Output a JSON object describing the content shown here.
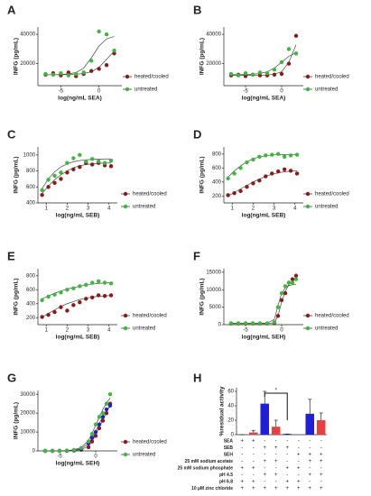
{
  "chart_data": [
    {
      "label": "A",
      "type": "scatter",
      "xlabel": "log(ng/mL SEA)",
      "ylabel": "INFG (pg/mL)",
      "xlim": [
        -8,
        3
      ],
      "xticks": [
        -5,
        0
      ],
      "ylim": [
        5000,
        45000
      ],
      "yticks": [
        20000,
        40000
      ],
      "x": [
        -7,
        -6,
        -5,
        -4,
        -3,
        -2,
        -1,
        0,
        1,
        2
      ],
      "series": [
        {
          "name": "heated/cooled",
          "color": "#8b1a1a",
          "values": [
            12500,
            13500,
            12000,
            14000,
            11500,
            13000,
            15000,
            16500,
            19000,
            27000
          ],
          "fit": [
            12500,
            12500,
            12500,
            12600,
            12800,
            13300,
            14500,
            17500,
            23000,
            28500
          ]
        },
        {
          "name": "untreated",
          "color": "#3cb83c",
          "values": [
            13000,
            12500,
            13500,
            12000,
            13000,
            14000,
            22000,
            42000,
            40000,
            29000
          ],
          "fit": [
            12500,
            12500,
            12600,
            13000,
            14000,
            17000,
            24000,
            32000,
            37000,
            38500
          ]
        }
      ]
    },
    {
      "label": "B",
      "type": "scatter",
      "xlabel": "log(ng/mL SEA)",
      "ylabel": "INFG (pg/mL)",
      "xlim": [
        -8,
        3
      ],
      "xticks": [
        -5,
        0
      ],
      "ylim": [
        5000,
        45000
      ],
      "yticks": [
        20000,
        40000
      ],
      "x": [
        -7,
        -6,
        -5,
        -4,
        -3,
        -2,
        -1,
        0,
        1,
        2
      ],
      "series": [
        {
          "name": "heated/cooled",
          "color": "#8b1a1a",
          "values": [
            12000,
            12500,
            11500,
            12500,
            12000,
            12000,
            12500,
            13000,
            20000,
            39000
          ],
          "fit": [
            12000,
            12000,
            12000,
            12000,
            12100,
            12300,
            12800,
            14500,
            21000,
            33000
          ]
        },
        {
          "name": "untreated",
          "color": "#3cb83c",
          "values": [
            13000,
            12000,
            13500,
            12500,
            14000,
            13500,
            16000,
            21000,
            30000,
            27000
          ],
          "fit": [
            12500,
            12500,
            12600,
            12800,
            13300,
            14500,
            17000,
            21000,
            25000,
            27500
          ]
        }
      ]
    },
    {
      "label": "C",
      "type": "scatter",
      "xlabel": "log(ng/mL SEB)",
      "ylabel": "INFG (pg/mL)",
      "xlim": [
        0.6,
        4.4
      ],
      "xticks": [
        1,
        2,
        3,
        4
      ],
      "ylim": [
        400,
        1100
      ],
      "yticks": [
        400,
        600,
        800,
        1000
      ],
      "x": [
        0.8,
        1.1,
        1.4,
        1.7,
        2,
        2.3,
        2.6,
        2.9,
        3.2,
        3.5,
        3.8,
        4.1
      ],
      "series": [
        {
          "name": "heated/cooled",
          "color": "#8b1a1a",
          "values": [
            500,
            600,
            650,
            700,
            780,
            820,
            850,
            900,
            880,
            900,
            870,
            860
          ],
          "fit": [
            520,
            610,
            690,
            750,
            800,
            840,
            865,
            880,
            890,
            895,
            898,
            900
          ]
        },
        {
          "name": "untreated",
          "color": "#3cb83c",
          "values": [
            560,
            690,
            740,
            780,
            900,
            960,
            1000,
            920,
            950,
            920,
            900,
            930
          ],
          "fit": [
            580,
            700,
            790,
            850,
            890,
            915,
            930,
            940,
            945,
            948,
            950,
            950
          ]
        }
      ]
    },
    {
      "label": "D",
      "type": "scatter",
      "xlabel": "log(ng/mL SEB)",
      "ylabel": "INFG (pg/mL)",
      "xlim": [
        0.6,
        4.4
      ],
      "xticks": [
        1,
        2,
        3,
        4
      ],
      "ylim": [
        100,
        900
      ],
      "yticks": [
        200,
        400,
        600,
        800
      ],
      "x": [
        0.8,
        1.1,
        1.4,
        1.7,
        2,
        2.3,
        2.6,
        2.9,
        3.2,
        3.5,
        3.8,
        4.1
      ],
      "series": [
        {
          "name": "heated/cooled",
          "color": "#8b1a1a",
          "values": [
            210,
            240,
            270,
            330,
            380,
            420,
            480,
            520,
            550,
            580,
            560,
            520
          ],
          "fit": [
            200,
            250,
            300,
            350,
            400,
            440,
            480,
            510,
            530,
            545,
            555,
            560
          ]
        },
        {
          "name": "untreated",
          "color": "#3cb83c",
          "values": [
            450,
            520,
            600,
            680,
            720,
            760,
            780,
            790,
            800,
            760,
            780,
            790
          ],
          "fit": [
            470,
            560,
            630,
            690,
            730,
            760,
            775,
            785,
            790,
            792,
            793,
            794
          ]
        }
      ]
    },
    {
      "label": "E",
      "type": "scatter",
      "xlabel": "log(ng/mL SEB)",
      "ylabel": "INFG (pg/mL)",
      "xlim": [
        0.6,
        4.4
      ],
      "xticks": [
        1,
        2,
        3,
        4
      ],
      "ylim": [
        100,
        900
      ],
      "yticks": [
        200,
        400,
        600,
        800
      ],
      "x": [
        0.8,
        1.1,
        1.4,
        1.7,
        2,
        2.3,
        2.6,
        2.9,
        3.2,
        3.5,
        3.8,
        4.1
      ],
      "series": [
        {
          "name": "heated/cooled",
          "color": "#8b1a1a",
          "values": [
            210,
            240,
            280,
            350,
            300,
            380,
            420,
            470,
            490,
            520,
            510,
            520
          ],
          "fit": [
            210,
            260,
            310,
            360,
            400,
            430,
            460,
            480,
            495,
            505,
            512,
            516
          ]
        },
        {
          "name": "untreated",
          "color": "#3cb83c",
          "values": [
            450,
            500,
            530,
            560,
            600,
            620,
            650,
            670,
            700,
            720,
            700,
            690
          ],
          "fit": [
            470,
            510,
            550,
            580,
            610,
            630,
            650,
            665,
            680,
            690,
            697,
            702
          ]
        }
      ]
    },
    {
      "label": "F",
      "type": "scatter",
      "xlabel": "log(ng/mL SEH)",
      "ylabel": "INFG (pg/mL)",
      "xlim": [
        -8,
        3
      ],
      "xticks": [
        -5,
        0
      ],
      "ylim": [
        0,
        16000
      ],
      "yticks": [
        0,
        5000,
        10000,
        15000
      ],
      "x": [
        -7,
        -6,
        -5,
        -4,
        -3,
        -2,
        -1,
        -0.5,
        0,
        0.5,
        1,
        1.5,
        2
      ],
      "series": [
        {
          "name": "heated/cooled",
          "color": "#8b1a1a",
          "values": [
            300,
            300,
            300,
            300,
            300,
            300,
            400,
            2500,
            7000,
            9000,
            12000,
            13000,
            14000
          ],
          "fit": [
            300,
            300,
            300,
            300,
            300,
            300,
            600,
            2500,
            6500,
            9500,
            11500,
            12500,
            13000
          ]
        },
        {
          "name": "untreated",
          "color": "#3cb83c",
          "values": [
            400,
            400,
            400,
            400,
            400,
            400,
            700,
            5000,
            9000,
            11000,
            12000,
            12000,
            13000
          ],
          "fit": [
            400,
            400,
            400,
            400,
            400,
            450,
            1500,
            5500,
            9000,
            10500,
            11200,
            11400,
            11500
          ]
        }
      ]
    },
    {
      "label": "G",
      "type": "scatter",
      "xlabel": "log(ng/mL SEH)",
      "ylabel": "INFG (pg/mL)",
      "xlim": [
        -8,
        3
      ],
      "xticks": [
        -5,
        0
      ],
      "ylim": [
        0,
        32000
      ],
      "yticks": [
        0,
        10000,
        20000,
        30000
      ],
      "x": [
        -7,
        -6,
        -5,
        -4,
        -3,
        -2,
        -1,
        -0.5,
        0,
        0.5,
        1,
        1.5,
        2
      ],
      "series": [
        {
          "name": "heated/cooled",
          "color": "#8b1a1a",
          "values": [
            0,
            0,
            0,
            0,
            200,
            600,
            2000,
            5000,
            8000,
            12000,
            16000,
            20000,
            25000
          ],
          "fit": [
            0,
            0,
            0,
            50,
            200,
            700,
            2500,
            5000,
            8500,
            12500,
            16500,
            20500,
            24000
          ]
        },
        {
          "color": "#1f1fd6",
          "values": [
            0,
            0,
            0,
            100,
            300,
            1000,
            4000,
            7000,
            10000,
            14000,
            18000,
            22000,
            24000
          ],
          "fit": [
            0,
            0,
            0,
            100,
            350,
            1200,
            4000,
            7000,
            10500,
            14500,
            18500,
            21500,
            23500
          ]
        },
        {
          "name": "untreated",
          "color": "#3cb83c",
          "values": [
            0,
            0,
            0,
            200,
            500,
            1500,
            5000,
            9000,
            14000,
            18000,
            20000,
            25000,
            30000
          ],
          "fit": [
            0,
            0,
            50,
            200,
            600,
            1800,
            5500,
            9500,
            13500,
            18000,
            22000,
            25500,
            28000
          ]
        }
      ]
    },
    {
      "label": "H",
      "type": "bar",
      "ylabel": "%residual activity",
      "ylim": [
        0,
        65
      ],
      "yticks": [
        0,
        20,
        40,
        60
      ],
      "annotation": "*",
      "values": [
        0,
        3,
        43,
        11,
        1,
        null,
        29,
        20
      ],
      "errors": [
        0,
        3,
        17,
        9,
        0,
        null,
        20,
        10
      ],
      "colors": [
        "#1f1fd6",
        "#e84040",
        "#1f1fd6",
        "#e84040",
        "#1f1fd6",
        "#e84040",
        "#1f1fd6",
        "#e84040"
      ],
      "table": [
        {
          "label": "SEA",
          "cells": [
            "+",
            "+",
            "-",
            "-",
            "-",
            "-",
            "-",
            "-"
          ]
        },
        {
          "label": "SEB",
          "cells": [
            "-",
            "-",
            "+",
            "+",
            "+",
            "-",
            "-",
            "-"
          ]
        },
        {
          "label": "SEH",
          "cells": [
            "-",
            "-",
            "-",
            "-",
            "-",
            "+",
            "+",
            "+"
          ]
        },
        {
          "label": "25 mM sodium acetate",
          "cells": [
            "-",
            "-",
            "+",
            "+",
            "-",
            "-",
            "+",
            "+"
          ]
        },
        {
          "label": "25 mM sodium phosphate",
          "cells": [
            "+",
            "+",
            "-",
            "-",
            "+",
            "+",
            "-",
            "-"
          ]
        },
        {
          "label": "pH 4.5",
          "cells": [
            "-",
            "-",
            "+",
            "+",
            "-",
            "-",
            "+",
            "+"
          ]
        },
        {
          "label": "pH 6.8",
          "cells": [
            "+",
            "+",
            "-",
            "-",
            "+",
            "+",
            "-",
            "-"
          ]
        },
        {
          "label": "10 µM zinc chloride",
          "cells": [
            "+",
            "+",
            "+",
            "+",
            "+",
            "+",
            "+",
            "+"
          ]
        }
      ]
    }
  ]
}
